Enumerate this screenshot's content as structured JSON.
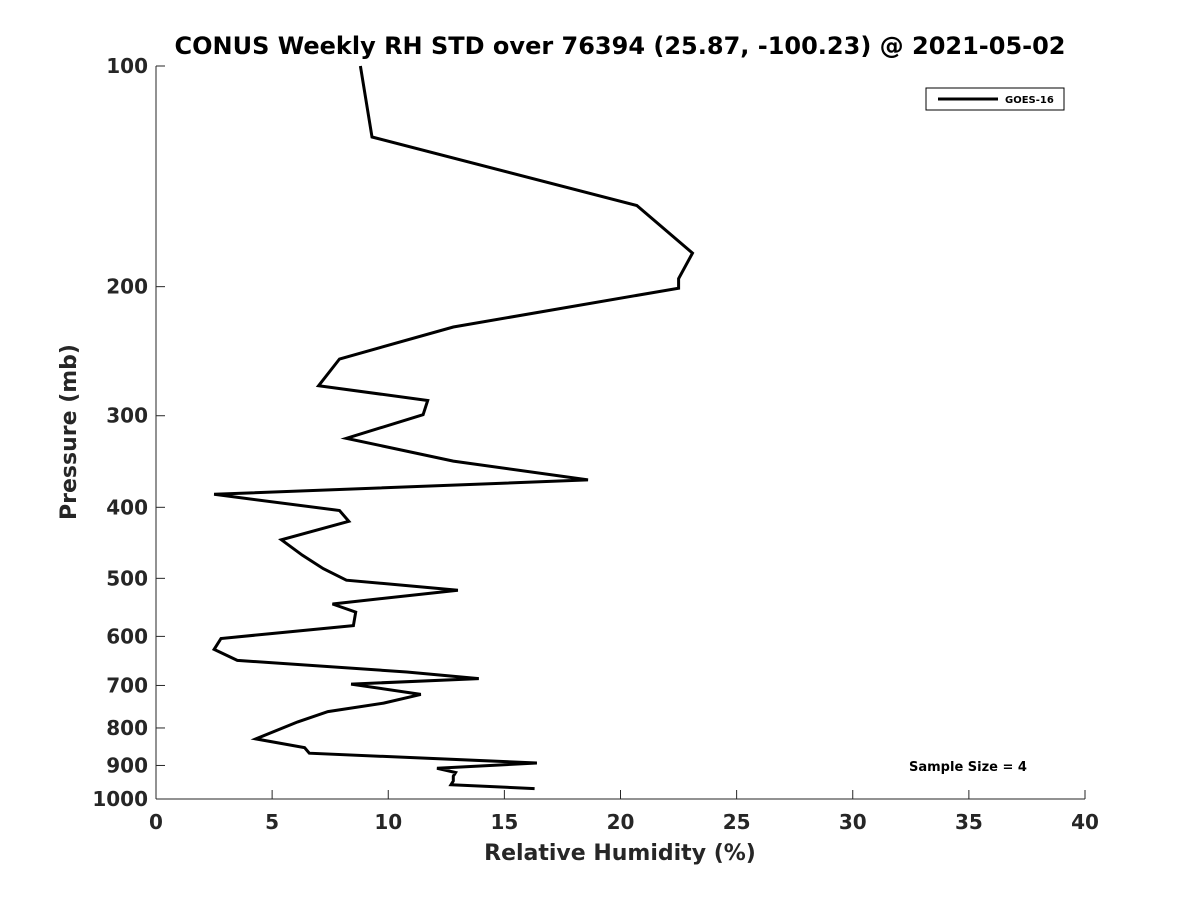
{
  "chart_data": {
    "type": "line",
    "title": "CONUS Weekly RH STD over 76394 (25.87, -100.23) @ 2021-05-02",
    "xlabel": "Relative Humidity (%)",
    "ylabel": "Pressure (mb)",
    "xlim": [
      0,
      40
    ],
    "ylim": [
      100,
      1000
    ],
    "yscale": "log",
    "y_reversed": true,
    "xticks": [
      0,
      5,
      10,
      15,
      20,
      25,
      30,
      35,
      40
    ],
    "yticks": [
      100,
      200,
      300,
      400,
      500,
      600,
      700,
      800,
      900,
      1000
    ],
    "grid": false,
    "legend": {
      "position": "top-right",
      "entries": [
        "GOES-16"
      ]
    },
    "annotations": [
      "Sample Size = 4"
    ],
    "series": [
      {
        "name": "GOES-16",
        "color": "#000000",
        "points": [
          [
            8.8,
            100
          ],
          [
            9.3,
            125
          ],
          [
            20.7,
            155
          ],
          [
            23.1,
            180
          ],
          [
            22.5,
            195
          ],
          [
            22.5,
            201
          ],
          [
            12.8,
            227
          ],
          [
            7.9,
            251
          ],
          [
            7.0,
            273
          ],
          [
            11.7,
            286
          ],
          [
            11.5,
            299
          ],
          [
            8.2,
            322
          ],
          [
            12.8,
            346
          ],
          [
            18.6,
            367
          ],
          [
            2.5,
            384
          ],
          [
            7.9,
            404
          ],
          [
            8.3,
            418
          ],
          [
            5.4,
            443
          ],
          [
            6.3,
            465
          ],
          [
            7.2,
            485
          ],
          [
            8.2,
            503
          ],
          [
            13.0,
            519
          ],
          [
            7.6,
            542
          ],
          [
            8.6,
            556
          ],
          [
            8.5,
            580
          ],
          [
            2.8,
            604
          ],
          [
            2.5,
            625
          ],
          [
            3.5,
            647
          ],
          [
            10.8,
            671
          ],
          [
            13.9,
            685
          ],
          [
            8.4,
            697
          ],
          [
            11.4,
            720
          ],
          [
            9.8,
            740
          ],
          [
            7.4,
            760
          ],
          [
            6.1,
            785
          ],
          [
            4.3,
            828
          ],
          [
            6.4,
            851
          ],
          [
            6.6,
            866
          ],
          [
            16.4,
            893
          ],
          [
            12.1,
            908
          ],
          [
            12.9,
            920
          ],
          [
            12.8,
            931
          ],
          [
            12.8,
            945
          ],
          [
            12.7,
            956
          ],
          [
            16.3,
            968
          ]
        ]
      }
    ]
  }
}
